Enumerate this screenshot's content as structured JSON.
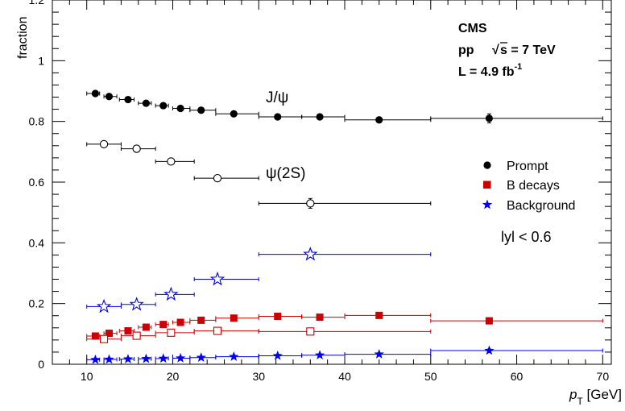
{
  "chart_data": {
    "type": "scatter",
    "xlabel": "p",
    "xlabel_sub": "T",
    "xlabel_unit": " [GeV]",
    "ylabel": "fraction",
    "xlim": [
      6,
      71
    ],
    "ylim": [
      0,
      1.2
    ],
    "x_ticks": [
      10,
      20,
      30,
      40,
      50,
      60,
      70
    ],
    "y_ticks": [
      0,
      0.2,
      0.4,
      0.6,
      0.8,
      1,
      1.2
    ],
    "x_tick_labels": [
      "10",
      "20",
      "30",
      "40",
      "50",
      "60",
      "70"
    ],
    "y_tick_labels": [
      "0",
      "0.2",
      "0.4",
      "0.6",
      "0.8",
      "1",
      "1.2"
    ],
    "header": {
      "experiment": "CMS",
      "collision": "pp",
      "sqrt": "√",
      "energy": "s = 7 TeV",
      "lumi_prefix": "L  =  4.9 fb",
      "lumi_exp": "-1"
    },
    "annotations": {
      "jpsi": "J/ψ",
      "psi2s": "ψ(2S)",
      "rapidity": "lyl < 0.6"
    },
    "legend": [
      {
        "label": "Prompt",
        "marker": "circle-filled",
        "color": "#000000"
      },
      {
        "label": "B decays",
        "marker": "square-filled",
        "color": "#cc0000"
      },
      {
        "label": "Background",
        "marker": "star-filled",
        "color": "#0000ee"
      }
    ],
    "series": [
      {
        "group": "J/ψ",
        "component": "Prompt",
        "marker": "circle-filled",
        "color": "#000000",
        "x": [
          11.0,
          12.6,
          14.8,
          16.9,
          18.9,
          20.9,
          23.3,
          27.1,
          32.2,
          37.1,
          44.0,
          56.8
        ],
        "xerr_lo": [
          1.0,
          0.6,
          1.0,
          0.9,
          0.9,
          0.9,
          1.3,
          2.1,
          2.2,
          2.1,
          4.0,
          6.8
        ],
        "xerr_hi": [
          0.5,
          0.9,
          0.7,
          0.6,
          0.6,
          1.1,
          1.7,
          2.9,
          2.8,
          2.9,
          6.0,
          13.2
        ],
        "y": [
          0.892,
          0.882,
          0.872,
          0.86,
          0.852,
          0.843,
          0.837,
          0.825,
          0.815,
          0.815,
          0.805,
          0.81
        ],
        "yerr": [
          0.004,
          0.004,
          0.004,
          0.004,
          0.004,
          0.004,
          0.004,
          0.004,
          0.004,
          0.005,
          0.006,
          0.015
        ]
      },
      {
        "group": "ψ(2S)",
        "component": "Prompt",
        "marker": "circle-open",
        "color": "#000000",
        "x": [
          12.0,
          15.8,
          19.8,
          25.2,
          36.0
        ],
        "xerr_lo": [
          2.0,
          1.8,
          1.8,
          2.7,
          6.0
        ],
        "xerr_hi": [
          2.0,
          2.2,
          2.7,
          4.8,
          14.0
        ],
        "y": [
          0.725,
          0.71,
          0.668,
          0.613,
          0.53
        ],
        "yerr": [
          0.004,
          0.004,
          0.005,
          0.007,
          0.016
        ]
      },
      {
        "group": "J/ψ",
        "component": "B decays",
        "marker": "square-filled",
        "color": "#cc0000",
        "x": [
          11.0,
          12.6,
          14.8,
          16.9,
          18.9,
          20.9,
          23.3,
          27.1,
          32.2,
          37.1,
          44.0,
          56.8
        ],
        "xerr_lo": [
          1.0,
          0.6,
          1.0,
          0.9,
          0.9,
          0.9,
          1.3,
          2.1,
          2.2,
          2.1,
          4.0,
          6.8
        ],
        "xerr_hi": [
          0.5,
          0.9,
          0.7,
          0.6,
          0.6,
          1.1,
          1.7,
          2.9,
          2.8,
          2.9,
          6.0,
          13.2
        ],
        "y": [
          0.093,
          0.102,
          0.11,
          0.122,
          0.131,
          0.138,
          0.145,
          0.152,
          0.158,
          0.155,
          0.161,
          0.143
        ],
        "yerr": [
          0.003,
          0.003,
          0.003,
          0.003,
          0.003,
          0.003,
          0.003,
          0.003,
          0.004,
          0.004,
          0.005,
          0.008
        ]
      },
      {
        "group": "ψ(2S)",
        "component": "B decays",
        "marker": "square-open",
        "color": "#cc0000",
        "x": [
          12.0,
          15.8,
          19.8,
          25.2,
          36.0
        ],
        "xerr_lo": [
          2.0,
          1.8,
          1.8,
          2.7,
          6.0
        ],
        "xerr_hi": [
          2.0,
          2.2,
          2.7,
          4.8,
          14.0
        ],
        "y": [
          0.083,
          0.094,
          0.104,
          0.11,
          0.108
        ],
        "yerr": [
          0.003,
          0.003,
          0.003,
          0.004,
          0.006
        ]
      },
      {
        "group": "J/ψ",
        "component": "Background",
        "marker": "star-filled",
        "color": "#0000ee",
        "x": [
          11.0,
          12.6,
          14.8,
          16.9,
          18.9,
          20.9,
          23.3,
          27.1,
          32.2,
          37.1,
          44.0,
          56.8
        ],
        "xerr_lo": [
          1.0,
          0.6,
          1.0,
          0.9,
          0.9,
          0.9,
          1.3,
          2.1,
          2.2,
          2.1,
          4.0,
          6.8
        ],
        "xerr_hi": [
          0.5,
          0.9,
          0.7,
          0.6,
          0.6,
          1.1,
          1.7,
          2.9,
          2.8,
          2.9,
          6.0,
          13.2
        ],
        "y": [
          0.015,
          0.016,
          0.017,
          0.018,
          0.019,
          0.02,
          0.022,
          0.025,
          0.028,
          0.03,
          0.033,
          0.045
        ],
        "yerr": [
          0.002,
          0.002,
          0.002,
          0.002,
          0.002,
          0.002,
          0.002,
          0.002,
          0.002,
          0.003,
          0.003,
          0.005
        ]
      },
      {
        "group": "ψ(2S)",
        "component": "Background",
        "marker": "star-open",
        "color": "#0000ee",
        "x": [
          12.0,
          15.8,
          19.8,
          25.2,
          36.0
        ],
        "xerr_lo": [
          2.0,
          1.8,
          1.8,
          2.7,
          6.0
        ],
        "xerr_hi": [
          2.0,
          2.2,
          2.7,
          4.8,
          14.0
        ],
        "y": [
          0.19,
          0.197,
          0.23,
          0.28,
          0.362
        ],
        "yerr": [
          0.004,
          0.004,
          0.005,
          0.006,
          0.01
        ]
      }
    ]
  }
}
